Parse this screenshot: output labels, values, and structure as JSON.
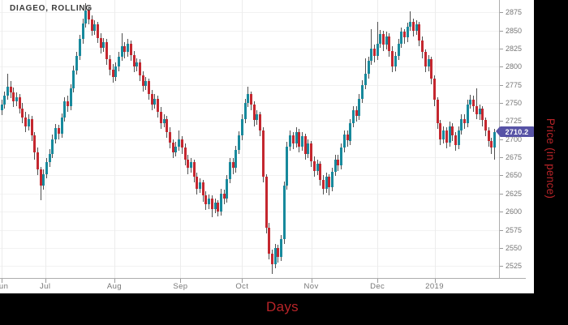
{
  "title": "DIAGEO, ROLLING",
  "last_price": 2710.2,
  "last_price_label": "2710.2",
  "axes": {
    "x_label": "Days",
    "y_label": "Price (in pence)"
  },
  "colors": {
    "up": "#17899C",
    "down": "#C4272F",
    "wick": "#4F4F4F",
    "grid": "#F2F2F2",
    "axis_title": "#B82428",
    "badge": "#5753A6",
    "background": "#FFFFFF",
    "frame": "#000000"
  },
  "chart_data": {
    "type": "candlestick",
    "title": "DIAGEO, ROLLING",
    "xlabel": "Days",
    "ylabel": "Price (in pence)",
    "ylim": [
      2508.5,
      2892
    ],
    "grid": true,
    "y_ticks": [
      2525,
      2550,
      2575,
      2600,
      2625,
      2650,
      2675,
      2700,
      2725,
      2750,
      2775,
      2800,
      2825,
      2850,
      2875
    ],
    "x_ticks": [
      {
        "label": "Jun",
        "day": 0
      },
      {
        "label": "Jul",
        "day": 14.5
      },
      {
        "label": "Aug",
        "day": 37.5
      },
      {
        "label": "Sep",
        "day": 59.5
      },
      {
        "label": "Oct",
        "day": 80
      },
      {
        "label": "Nov",
        "day": 103
      },
      {
        "label": "Dec",
        "day": 125
      },
      {
        "label": "2019",
        "day": 144
      }
    ],
    "last_close": 2710.2,
    "columns": [
      "open",
      "high",
      "low",
      "close"
    ],
    "candles": [
      [
        2740,
        2754,
        2733,
        2748
      ],
      [
        2748,
        2766,
        2742,
        2760
      ],
      [
        2760,
        2790,
        2754,
        2772
      ],
      [
        2772,
        2780,
        2757,
        2765
      ],
      [
        2765,
        2771,
        2744,
        2752
      ],
      [
        2752,
        2764,
        2746,
        2758
      ],
      [
        2758,
        2762,
        2735,
        2742
      ],
      [
        2742,
        2750,
        2722,
        2730
      ],
      [
        2730,
        2738,
        2710,
        2718
      ],
      [
        2718,
        2734,
        2712,
        2728
      ],
      [
        2728,
        2732,
        2698,
        2705
      ],
      [
        2705,
        2710,
        2672,
        2682
      ],
      [
        2682,
        2688,
        2650,
        2658
      ],
      [
        2658,
        2662,
        2616,
        2636
      ],
      [
        2636,
        2658,
        2630,
        2652
      ],
      [
        2652,
        2674,
        2646,
        2668
      ],
      [
        2668,
        2686,
        2662,
        2680
      ],
      [
        2680,
        2706,
        2674,
        2700
      ],
      [
        2700,
        2721,
        2694,
        2715
      ],
      [
        2715,
        2720,
        2700,
        2708
      ],
      [
        2708,
        2736,
        2702,
        2730
      ],
      [
        2730,
        2758,
        2724,
        2752
      ],
      [
        2752,
        2760,
        2738,
        2746
      ],
      [
        2746,
        2776,
        2740,
        2770
      ],
      [
        2770,
        2801,
        2764,
        2795
      ],
      [
        2795,
        2821,
        2789,
        2815
      ],
      [
        2815,
        2844,
        2809,
        2838
      ],
      [
        2838,
        2866,
        2832,
        2860
      ],
      [
        2860,
        2888,
        2854,
        2878
      ],
      [
        2878,
        2883,
        2858,
        2865
      ],
      [
        2865,
        2871,
        2843,
        2850
      ],
      [
        2850,
        2864,
        2844,
        2858
      ],
      [
        2858,
        2862,
        2833,
        2840
      ],
      [
        2840,
        2846,
        2818,
        2826
      ],
      [
        2826,
        2840,
        2820,
        2834
      ],
      [
        2834,
        2838,
        2802,
        2810
      ],
      [
        2810,
        2816,
        2788,
        2796
      ],
      [
        2796,
        2804,
        2778,
        2786
      ],
      [
        2786,
        2806,
        2780,
        2800
      ],
      [
        2800,
        2820,
        2794,
        2814
      ],
      [
        2814,
        2846,
        2808,
        2828
      ],
      [
        2828,
        2834,
        2812,
        2820
      ],
      [
        2820,
        2838,
        2814,
        2832
      ],
      [
        2832,
        2836,
        2808,
        2816
      ],
      [
        2816,
        2822,
        2792,
        2800
      ],
      [
        2800,
        2812,
        2794,
        2806
      ],
      [
        2806,
        2810,
        2780,
        2788
      ],
      [
        2788,
        2794,
        2766,
        2774
      ],
      [
        2774,
        2786,
        2768,
        2780
      ],
      [
        2780,
        2784,
        2754,
        2762
      ],
      [
        2762,
        2768,
        2740,
        2748
      ],
      [
        2748,
        2762,
        2742,
        2756
      ],
      [
        2756,
        2760,
        2730,
        2738
      ],
      [
        2738,
        2744,
        2714,
        2722
      ],
      [
        2722,
        2734,
        2716,
        2728
      ],
      [
        2728,
        2732,
        2702,
        2710
      ],
      [
        2710,
        2716,
        2687,
        2695
      ],
      [
        2695,
        2700,
        2674,
        2682
      ],
      [
        2682,
        2696,
        2676,
        2690
      ],
      [
        2690,
        2712,
        2684,
        2700
      ],
      [
        2700,
        2704,
        2680,
        2688
      ],
      [
        2688,
        2694,
        2664,
        2672
      ],
      [
        2672,
        2678,
        2652,
        2660
      ],
      [
        2660,
        2674,
        2654,
        2668
      ],
      [
        2668,
        2672,
        2640,
        2648
      ],
      [
        2648,
        2654,
        2624,
        2632
      ],
      [
        2632,
        2646,
        2626,
        2640
      ],
      [
        2640,
        2644,
        2614,
        2622
      ],
      [
        2622,
        2628,
        2602,
        2610
      ],
      [
        2610,
        2624,
        2604,
        2618
      ],
      [
        2618,
        2622,
        2592,
        2604
      ],
      [
        2604,
        2618,
        2598,
        2612
      ],
      [
        2612,
        2616,
        2593,
        2600
      ],
      [
        2600,
        2631,
        2595,
        2625
      ],
      [
        2625,
        2630,
        2610,
        2618
      ],
      [
        2618,
        2651,
        2612,
        2645
      ],
      [
        2645,
        2674,
        2639,
        2668
      ],
      [
        2668,
        2674,
        2652,
        2660
      ],
      [
        2660,
        2691,
        2654,
        2685
      ],
      [
        2685,
        2711,
        2679,
        2705
      ],
      [
        2705,
        2734,
        2699,
        2728
      ],
      [
        2728,
        2756,
        2722,
        2750
      ],
      [
        2750,
        2772,
        2744,
        2762
      ],
      [
        2762,
        2766,
        2740,
        2748
      ],
      [
        2748,
        2752,
        2718,
        2726
      ],
      [
        2726,
        2740,
        2720,
        2734
      ],
      [
        2734,
        2738,
        2704,
        2712
      ],
      [
        2712,
        2716,
        2640,
        2648
      ],
      [
        2648,
        2652,
        2570,
        2578
      ],
      [
        2578,
        2584,
        2534,
        2542
      ],
      [
        2542,
        2548,
        2514,
        2528
      ],
      [
        2528,
        2556,
        2522,
        2550
      ],
      [
        2550,
        2554,
        2530,
        2538
      ],
      [
        2538,
        2568,
        2532,
        2562
      ],
      [
        2562,
        2642,
        2556,
        2636
      ],
      [
        2636,
        2696,
        2630,
        2690
      ],
      [
        2690,
        2712,
        2684,
        2705
      ],
      [
        2705,
        2710,
        2686,
        2694
      ],
      [
        2694,
        2716,
        2688,
        2710
      ],
      [
        2710,
        2714,
        2682,
        2690
      ],
      [
        2690,
        2710,
        2684,
        2704
      ],
      [
        2704,
        2708,
        2672,
        2680
      ],
      [
        2680,
        2700,
        2674,
        2694
      ],
      [
        2694,
        2698,
        2662,
        2670
      ],
      [
        2670,
        2676,
        2648,
        2656
      ],
      [
        2656,
        2672,
        2650,
        2666
      ],
      [
        2666,
        2670,
        2636,
        2644
      ],
      [
        2644,
        2650,
        2624,
        2632
      ],
      [
        2632,
        2654,
        2626,
        2648
      ],
      [
        2648,
        2652,
        2622,
        2634
      ],
      [
        2634,
        2661,
        2628,
        2655
      ],
      [
        2655,
        2678,
        2649,
        2672
      ],
      [
        2672,
        2678,
        2656,
        2664
      ],
      [
        2664,
        2694,
        2658,
        2688
      ],
      [
        2688,
        2712,
        2682,
        2706
      ],
      [
        2706,
        2712,
        2690,
        2698
      ],
      [
        2698,
        2728,
        2692,
        2722
      ],
      [
        2722,
        2746,
        2716,
        2740
      ],
      [
        2740,
        2746,
        2724,
        2732
      ],
      [
        2732,
        2762,
        2726,
        2756
      ],
      [
        2756,
        2781,
        2750,
        2775
      ],
      [
        2775,
        2812,
        2769,
        2790
      ],
      [
        2790,
        2814,
        2784,
        2808
      ],
      [
        2808,
        2852,
        2802,
        2825
      ],
      [
        2825,
        2831,
        2806,
        2815
      ],
      [
        2815,
        2862,
        2809,
        2832
      ],
      [
        2832,
        2851,
        2826,
        2845
      ],
      [
        2845,
        2850,
        2822,
        2830
      ],
      [
        2830,
        2848,
        2824,
        2842
      ],
      [
        2842,
        2846,
        2814,
        2822
      ],
      [
        2822,
        2828,
        2792,
        2800
      ],
      [
        2800,
        2821,
        2794,
        2815
      ],
      [
        2815,
        2838,
        2809,
        2832
      ],
      [
        2832,
        2854,
        2826,
        2848
      ],
      [
        2848,
        2852,
        2832,
        2840
      ],
      [
        2840,
        2861,
        2834,
        2855
      ],
      [
        2855,
        2876,
        2849,
        2862
      ],
      [
        2862,
        2866,
        2842,
        2850
      ],
      [
        2850,
        2864,
        2844,
        2858
      ],
      [
        2858,
        2862,
        2828,
        2836
      ],
      [
        2836,
        2842,
        2812,
        2820
      ],
      [
        2820,
        2824,
        2792,
        2800
      ],
      [
        2800,
        2816,
        2794,
        2810
      ],
      [
        2810,
        2814,
        2776,
        2784
      ],
      [
        2784,
        2788,
        2746,
        2754
      ],
      [
        2754,
        2758,
        2714,
        2722
      ],
      [
        2722,
        2726,
        2692,
        2700
      ],
      [
        2700,
        2718,
        2694,
        2712
      ],
      [
        2712,
        2716,
        2687,
        2695
      ],
      [
        2695,
        2724,
        2690,
        2718
      ],
      [
        2718,
        2722,
        2697,
        2705
      ],
      [
        2705,
        2710,
        2684,
        2692
      ],
      [
        2692,
        2718,
        2686,
        2712
      ],
      [
        2712,
        2734,
        2706,
        2728
      ],
      [
        2728,
        2734,
        2714,
        2722
      ],
      [
        2722,
        2754,
        2716,
        2748
      ],
      [
        2748,
        2761,
        2742,
        2755
      ],
      [
        2755,
        2760,
        2738,
        2746
      ],
      [
        2746,
        2770,
        2728,
        2734
      ],
      [
        2734,
        2748,
        2726,
        2742
      ],
      [
        2742,
        2746,
        2718,
        2726
      ],
      [
        2726,
        2730,
        2704,
        2712
      ],
      [
        2712,
        2716,
        2690,
        2698
      ],
      [
        2698,
        2702,
        2680,
        2688
      ],
      [
        2688,
        2714,
        2672,
        2710.2
      ]
    ]
  }
}
